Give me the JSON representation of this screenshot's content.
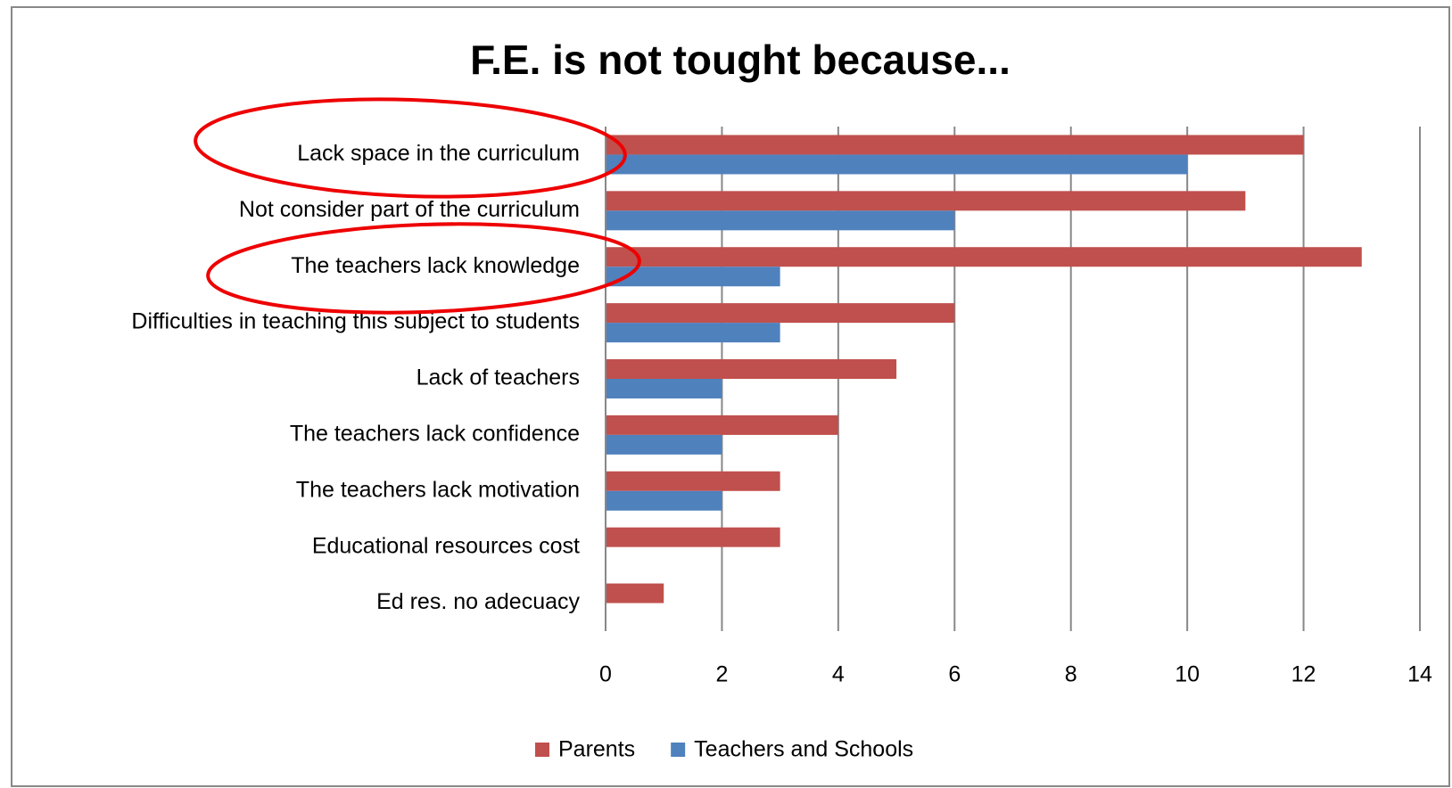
{
  "chart_data": {
    "type": "bar",
    "orientation": "horizontal",
    "title": "F.E. is not tought because...",
    "categories": [
      "Lack space in the curriculum",
      "Not consider part of the curriculum",
      "The teachers lack  knowledge",
      "Difficulties in teaching this subject to students",
      "Lack of teachers",
      "The teachers lack confidence",
      "The teachers lack motivation",
      "Educational resources cost",
      "Ed res. no adecuacy"
    ],
    "series": [
      {
        "name": "Parents",
        "color": "#c0504d",
        "values": [
          12,
          11,
          13,
          6,
          5,
          4,
          3,
          3,
          1
        ]
      },
      {
        "name": "Teachers and Schools",
        "color": "#4f81bd",
        "values": [
          10,
          6,
          3,
          3,
          2,
          2,
          2,
          0,
          0
        ]
      }
    ],
    "xlim": [
      0,
      14
    ],
    "xticks": [
      0,
      2,
      4,
      6,
      8,
      10,
      12,
      14
    ],
    "grid": true,
    "legend": "bottom"
  }
}
